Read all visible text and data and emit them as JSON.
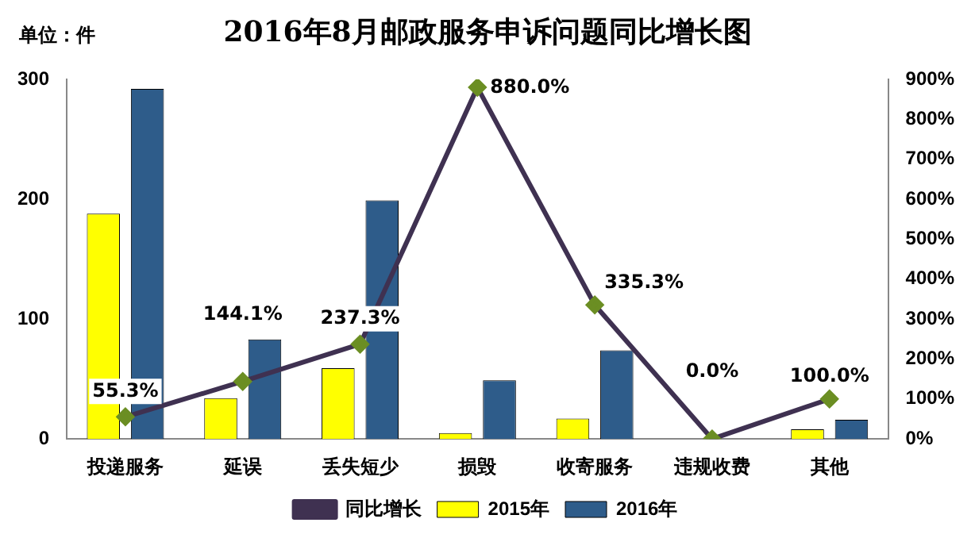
{
  "chart_data": {
    "type": "bar",
    "title": "2016年8月邮政服务申诉问题同比增长图",
    "annotations": [
      "单位：件"
    ],
    "categories": [
      "投递服务",
      "延误",
      "丢失短少",
      "损毁",
      "收寄服务",
      "违规收费",
      "其他"
    ],
    "series": [
      {
        "name": "2015年",
        "color": "#ffff00",
        "values": [
          188,
          34,
          59,
          5,
          17,
          0,
          8
        ]
      },
      {
        "name": "2016年",
        "color": "#2e5c8a",
        "values": [
          292,
          83,
          199,
          49,
          74,
          0,
          16
        ]
      },
      {
        "name": "同比增长",
        "type": "line",
        "axis": "y2",
        "color": "#3f3151",
        "values": [
          55.3,
          144.1,
          237.3,
          880.0,
          335.3,
          0.0,
          100.0
        ],
        "value_labels": [
          "55.3%",
          "144.1%",
          "237.3%",
          "880.0%",
          "335.3%",
          "0.0%",
          "100.0%"
        ]
      }
    ],
    "ylim": [
      0,
      300
    ],
    "yticks": [
      0,
      100,
      200,
      300
    ],
    "y2lim": [
      0,
      900
    ],
    "y2ticks": [
      {
        "value": 0,
        "label": "0%"
      },
      {
        "value": 100,
        "label": "100%"
      },
      {
        "value": 200,
        "label": "200%"
      },
      {
        "value": 300,
        "label": "300%"
      },
      {
        "value": 400,
        "label": "400%"
      },
      {
        "value": 500,
        "label": "500%"
      },
      {
        "value": 600,
        "label": "600%"
      },
      {
        "value": 700,
        "label": "700%"
      },
      {
        "value": 800,
        "label": "800%"
      },
      {
        "value": 900,
        "label": "900%"
      }
    ],
    "grid": false,
    "legend": "bottom",
    "marker": "diamond",
    "line_style": "solid"
  }
}
